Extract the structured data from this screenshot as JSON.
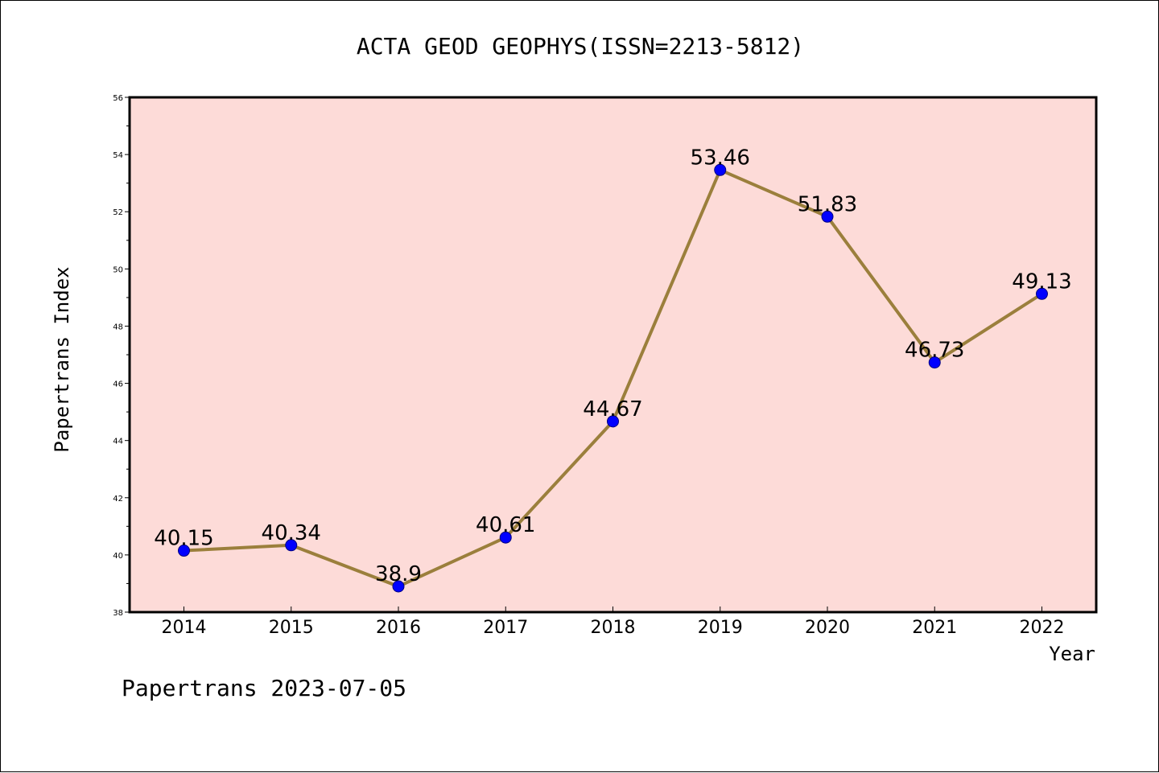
{
  "chart_data": {
    "type": "line",
    "title": "ACTA GEOD GEOPHYS(ISSN=2213-5812)",
    "xlabel": "Year",
    "ylabel": "Papertrans Index",
    "categories": [
      "2014",
      "2015",
      "2016",
      "2017",
      "2018",
      "2019",
      "2020",
      "2021",
      "2022"
    ],
    "values": [
      40.15,
      40.34,
      38.9,
      40.61,
      44.67,
      53.46,
      51.83,
      46.73,
      49.13
    ],
    "data_labels": [
      "40.15",
      "40.34",
      "38.9",
      "40.61",
      "44.67",
      "53.46",
      "51.83",
      "46.73",
      "49.13"
    ],
    "ylim": [
      38,
      56
    ],
    "yticks": [
      "38",
      "40",
      "42",
      "44",
      "46",
      "48",
      "50",
      "52",
      "54",
      "56"
    ],
    "grid": false,
    "colors": {
      "plot_background": "#fddbd8",
      "line": "#9b7f3c",
      "marker": "#0000ff",
      "marker_edge": "#000080"
    }
  },
  "footer": "Papertrans 2023-07-05"
}
